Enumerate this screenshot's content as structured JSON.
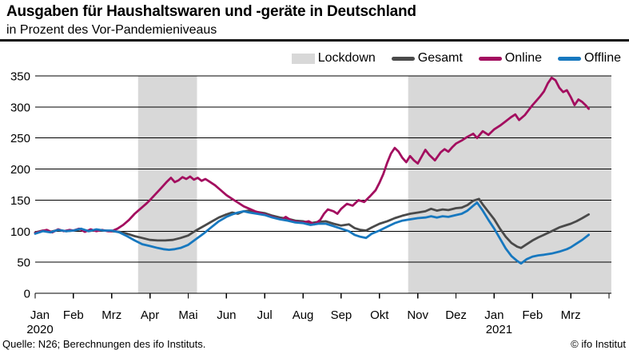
{
  "header": {
    "title": "Ausgaben für Haushaltswaren und -geräte in Deutschland",
    "subtitle": "in Prozent des Vor-Pandemieniveaus"
  },
  "footer": {
    "source": "Quelle: N26; Berechnungen des ifo Instituts.",
    "copyright": "© ifo Institut"
  },
  "legend": {
    "items": [
      {
        "label": "Lockdown",
        "type": "band",
        "color": "#d8d8d8"
      },
      {
        "label": "Gesamt",
        "type": "line",
        "color": "#4a4a4a"
      },
      {
        "label": "Online",
        "type": "line",
        "color": "#a30e5f"
      },
      {
        "label": "Offline",
        "type": "line",
        "color": "#1778bf"
      }
    ]
  },
  "chart_data": {
    "type": "line",
    "title": "Ausgaben für Haushaltswaren und -geräte in Deutschland",
    "subtitle": "in Prozent des Vor-Pandemieniveaus",
    "x_unit": "months since Jan 2020 (0 = 1 Jan 2020)",
    "x_tick_labels": [
      "Jan",
      "Feb",
      "Mrz",
      "Apr",
      "Mai",
      "Jun",
      "Jul",
      "Aug",
      "Sep",
      "Okt",
      "Nov",
      "Dez",
      "Jan",
      "Feb",
      "Mrz"
    ],
    "x_year_labels": [
      {
        "month_index": 0,
        "label": "2020"
      },
      {
        "month_index": 12,
        "label": "2021"
      }
    ],
    "xlim": [
      0,
      15.06
    ],
    "ylim": [
      0,
      350
    ],
    "yticks": [
      0,
      50,
      100,
      150,
      200,
      250,
      300,
      350
    ],
    "grid": true,
    "legend_position": "top-right",
    "band_color": "#d8d8d8",
    "lockdown_bands": [
      {
        "from_month": 2.69,
        "to_month": 4.23
      },
      {
        "from_month": 9.75,
        "to_month": 15.06
      }
    ],
    "series": [
      {
        "name": "Gesamt",
        "color": "#4a4a4a",
        "points": [
          [
            0.0,
            98
          ],
          [
            0.2,
            101
          ],
          [
            0.4,
            99
          ],
          [
            0.6,
            102
          ],
          [
            0.8,
            100
          ],
          [
            1.0,
            101
          ],
          [
            1.2,
            103
          ],
          [
            1.4,
            100
          ],
          [
            1.6,
            102
          ],
          [
            1.8,
            101
          ],
          [
            2.0,
            100
          ],
          [
            2.2,
            99
          ],
          [
            2.4,
            96
          ],
          [
            2.6,
            92
          ],
          [
            2.8,
            89
          ],
          [
            3.0,
            86
          ],
          [
            3.2,
            85
          ],
          [
            3.4,
            85
          ],
          [
            3.6,
            86
          ],
          [
            3.8,
            89
          ],
          [
            4.0,
            93
          ],
          [
            4.2,
            101
          ],
          [
            4.4,
            108
          ],
          [
            4.6,
            115
          ],
          [
            4.8,
            122
          ],
          [
            5.0,
            127
          ],
          [
            5.15,
            130
          ],
          [
            5.3,
            128
          ],
          [
            5.45,
            132
          ],
          [
            5.6,
            133
          ],
          [
            5.8,
            131
          ],
          [
            6.0,
            129
          ],
          [
            6.2,
            125
          ],
          [
            6.4,
            122
          ],
          [
            6.6,
            120
          ],
          [
            6.8,
            117
          ],
          [
            7.0,
            116
          ],
          [
            7.2,
            113
          ],
          [
            7.4,
            115
          ],
          [
            7.6,
            116
          ],
          [
            7.8,
            112
          ],
          [
            8.0,
            109
          ],
          [
            8.2,
            111
          ],
          [
            8.35,
            105
          ],
          [
            8.5,
            102
          ],
          [
            8.65,
            101
          ],
          [
            8.8,
            106
          ],
          [
            9.0,
            112
          ],
          [
            9.2,
            116
          ],
          [
            9.4,
            121
          ],
          [
            9.6,
            125
          ],
          [
            9.8,
            128
          ],
          [
            10.0,
            130
          ],
          [
            10.2,
            132
          ],
          [
            10.35,
            136
          ],
          [
            10.5,
            133
          ],
          [
            10.65,
            135
          ],
          [
            10.8,
            134
          ],
          [
            11.0,
            137
          ],
          [
            11.15,
            138
          ],
          [
            11.3,
            142
          ],
          [
            11.45,
            149
          ],
          [
            11.6,
            152
          ],
          [
            11.7,
            143
          ],
          [
            11.85,
            131
          ],
          [
            12.0,
            119
          ],
          [
            12.15,
            104
          ],
          [
            12.3,
            91
          ],
          [
            12.45,
            81
          ],
          [
            12.6,
            75
          ],
          [
            12.7,
            73
          ],
          [
            12.85,
            79
          ],
          [
            13.0,
            85
          ],
          [
            13.15,
            90
          ],
          [
            13.3,
            94
          ],
          [
            13.5,
            100
          ],
          [
            13.7,
            106
          ],
          [
            13.9,
            110
          ],
          [
            14.0,
            112
          ],
          [
            14.15,
            116
          ],
          [
            14.3,
            121
          ],
          [
            14.47,
            127
          ]
        ]
      },
      {
        "name": "Online",
        "color": "#a30e5f",
        "points": [
          [
            0.0,
            97
          ],
          [
            0.15,
            100
          ],
          [
            0.3,
            102
          ],
          [
            0.45,
            98
          ],
          [
            0.6,
            103
          ],
          [
            0.75,
            100
          ],
          [
            0.9,
            102
          ],
          [
            1.0,
            101
          ],
          [
            1.15,
            104
          ],
          [
            1.3,
            99
          ],
          [
            1.45,
            103
          ],
          [
            1.6,
            100
          ],
          [
            1.75,
            102
          ],
          [
            1.9,
            100
          ],
          [
            2.0,
            100
          ],
          [
            2.15,
            104
          ],
          [
            2.3,
            110
          ],
          [
            2.45,
            118
          ],
          [
            2.6,
            128
          ],
          [
            2.75,
            136
          ],
          [
            2.9,
            144
          ],
          [
            3.0,
            150
          ],
          [
            3.15,
            160
          ],
          [
            3.3,
            170
          ],
          [
            3.45,
            180
          ],
          [
            3.55,
            186
          ],
          [
            3.65,
            179
          ],
          [
            3.75,
            182
          ],
          [
            3.85,
            187
          ],
          [
            3.95,
            184
          ],
          [
            4.05,
            188
          ],
          [
            4.15,
            183
          ],
          [
            4.25,
            186
          ],
          [
            4.35,
            181
          ],
          [
            4.45,
            184
          ],
          [
            4.55,
            180
          ],
          [
            4.7,
            174
          ],
          [
            4.85,
            166
          ],
          [
            5.0,
            158
          ],
          [
            5.15,
            152
          ],
          [
            5.3,
            146
          ],
          [
            5.45,
            140
          ],
          [
            5.6,
            136
          ],
          [
            5.75,
            132
          ],
          [
            5.9,
            129
          ],
          [
            6.0,
            127
          ],
          [
            6.15,
            124
          ],
          [
            6.3,
            121
          ],
          [
            6.45,
            119
          ],
          [
            6.55,
            123
          ],
          [
            6.7,
            117
          ],
          [
            6.85,
            115
          ],
          [
            7.0,
            114
          ],
          [
            7.15,
            116
          ],
          [
            7.3,
            111
          ],
          [
            7.45,
            118
          ],
          [
            7.55,
            128
          ],
          [
            7.65,
            135
          ],
          [
            7.8,
            132
          ],
          [
            7.9,
            128
          ],
          [
            8.0,
            136
          ],
          [
            8.15,
            144
          ],
          [
            8.3,
            141
          ],
          [
            8.45,
            150
          ],
          [
            8.6,
            147
          ],
          [
            8.75,
            156
          ],
          [
            8.9,
            166
          ],
          [
            9.0,
            178
          ],
          [
            9.1,
            192
          ],
          [
            9.2,
            210
          ],
          [
            9.3,
            225
          ],
          [
            9.4,
            234
          ],
          [
            9.5,
            228
          ],
          [
            9.6,
            218
          ],
          [
            9.7,
            211
          ],
          [
            9.8,
            221
          ],
          [
            9.9,
            214
          ],
          [
            10.0,
            209
          ],
          [
            10.1,
            220
          ],
          [
            10.2,
            231
          ],
          [
            10.3,
            223
          ],
          [
            10.45,
            214
          ],
          [
            10.6,
            227
          ],
          [
            10.7,
            232
          ],
          [
            10.8,
            228
          ],
          [
            10.9,
            235
          ],
          [
            11.0,
            241
          ],
          [
            11.15,
            246
          ],
          [
            11.3,
            252
          ],
          [
            11.45,
            257
          ],
          [
            11.55,
            250
          ],
          [
            11.7,
            261
          ],
          [
            11.85,
            255
          ],
          [
            12.0,
            264
          ],
          [
            12.15,
            270
          ],
          [
            12.3,
            277
          ],
          [
            12.45,
            284
          ],
          [
            12.55,
            288
          ],
          [
            12.65,
            279
          ],
          [
            12.8,
            287
          ],
          [
            12.9,
            295
          ],
          [
            13.0,
            303
          ],
          [
            13.1,
            310
          ],
          [
            13.2,
            317
          ],
          [
            13.3,
            325
          ],
          [
            13.4,
            338
          ],
          [
            13.5,
            347
          ],
          [
            13.6,
            343
          ],
          [
            13.7,
            331
          ],
          [
            13.8,
            324
          ],
          [
            13.9,
            327
          ],
          [
            14.0,
            316
          ],
          [
            14.1,
            303
          ],
          [
            14.2,
            312
          ],
          [
            14.3,
            308
          ],
          [
            14.4,
            302
          ],
          [
            14.47,
            297
          ]
        ]
      },
      {
        "name": "Offline",
        "color": "#1778bf",
        "points": [
          [
            0.0,
            96
          ],
          [
            0.2,
            100
          ],
          [
            0.4,
            98
          ],
          [
            0.6,
            102
          ],
          [
            0.8,
            100
          ],
          [
            1.0,
            101
          ],
          [
            1.2,
            104
          ],
          [
            1.4,
            100
          ],
          [
            1.6,
            103
          ],
          [
            1.8,
            101
          ],
          [
            2.0,
            101
          ],
          [
            2.2,
            98
          ],
          [
            2.4,
            92
          ],
          [
            2.6,
            85
          ],
          [
            2.8,
            79
          ],
          [
            3.0,
            76
          ],
          [
            3.2,
            73
          ],
          [
            3.35,
            71
          ],
          [
            3.5,
            70
          ],
          [
            3.65,
            71
          ],
          [
            3.8,
            73
          ],
          [
            4.0,
            78
          ],
          [
            4.2,
            87
          ],
          [
            4.4,
            96
          ],
          [
            4.6,
            106
          ],
          [
            4.8,
            116
          ],
          [
            5.0,
            123
          ],
          [
            5.15,
            127
          ],
          [
            5.3,
            130
          ],
          [
            5.45,
            132
          ],
          [
            5.6,
            130
          ],
          [
            5.8,
            128
          ],
          [
            6.0,
            126
          ],
          [
            6.2,
            122
          ],
          [
            6.4,
            119
          ],
          [
            6.6,
            117
          ],
          [
            6.8,
            114
          ],
          [
            7.0,
            113
          ],
          [
            7.2,
            110
          ],
          [
            7.4,
            112
          ],
          [
            7.6,
            112
          ],
          [
            7.8,
            108
          ],
          [
            8.0,
            104
          ],
          [
            8.2,
            100
          ],
          [
            8.35,
            94
          ],
          [
            8.5,
            91
          ],
          [
            8.65,
            89
          ],
          [
            8.8,
            96
          ],
          [
            9.0,
            101
          ],
          [
            9.2,
            107
          ],
          [
            9.4,
            113
          ],
          [
            9.6,
            117
          ],
          [
            9.8,
            119
          ],
          [
            10.0,
            121
          ],
          [
            10.2,
            122
          ],
          [
            10.35,
            124
          ],
          [
            10.5,
            122
          ],
          [
            10.65,
            124
          ],
          [
            10.8,
            123
          ],
          [
            11.0,
            126
          ],
          [
            11.15,
            128
          ],
          [
            11.3,
            133
          ],
          [
            11.45,
            141
          ],
          [
            11.55,
            146
          ],
          [
            11.7,
            133
          ],
          [
            11.85,
            118
          ],
          [
            12.0,
            104
          ],
          [
            12.15,
            88
          ],
          [
            12.3,
            72
          ],
          [
            12.45,
            60
          ],
          [
            12.6,
            52
          ],
          [
            12.7,
            48
          ],
          [
            12.85,
            55
          ],
          [
            13.0,
            59
          ],
          [
            13.15,
            61
          ],
          [
            13.3,
            62
          ],
          [
            13.5,
            64
          ],
          [
            13.7,
            67
          ],
          [
            13.9,
            71
          ],
          [
            14.0,
            74
          ],
          [
            14.15,
            80
          ],
          [
            14.3,
            86
          ],
          [
            14.47,
            94
          ]
        ]
      }
    ]
  }
}
